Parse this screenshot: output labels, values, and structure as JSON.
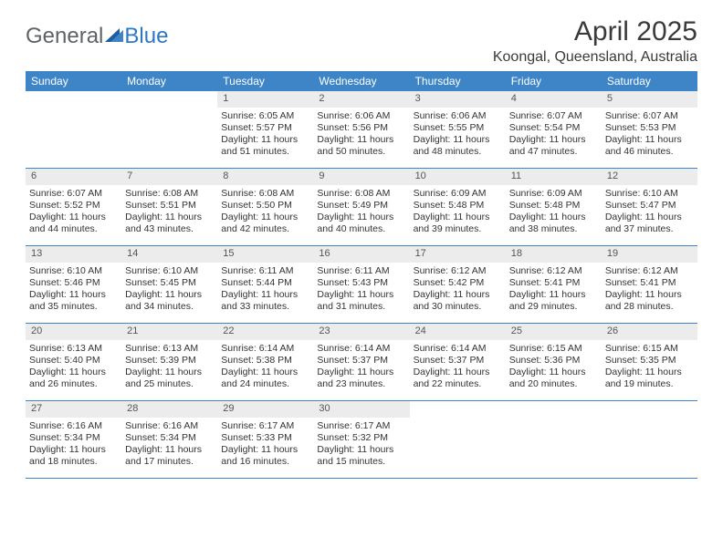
{
  "brand": {
    "part1": "General",
    "part2": "Blue"
  },
  "title": "April 2025",
  "location": "Koongal, Queensland, Australia",
  "colors": {
    "header_bar": "#3d85c6",
    "daynum_bg": "#ececec",
    "text": "#333333",
    "logo_gray": "#5f6368",
    "logo_blue": "#2b78c5",
    "row_border": "#3d85c6",
    "background": "#ffffff"
  },
  "typography": {
    "title_fontsize": 30,
    "location_fontsize": 16,
    "dow_fontsize": 12,
    "cell_fontsize": 10.5,
    "logo_fontsize": 24
  },
  "dow": [
    "Sunday",
    "Monday",
    "Tuesday",
    "Wednesday",
    "Thursday",
    "Friday",
    "Saturday"
  ],
  "weeks": [
    [
      {
        "n": "",
        "sr": "",
        "ss": "",
        "dl": ""
      },
      {
        "n": "",
        "sr": "",
        "ss": "",
        "dl": ""
      },
      {
        "n": "1",
        "sr": "Sunrise: 6:05 AM",
        "ss": "Sunset: 5:57 PM",
        "dl": "Daylight: 11 hours and 51 minutes."
      },
      {
        "n": "2",
        "sr": "Sunrise: 6:06 AM",
        "ss": "Sunset: 5:56 PM",
        "dl": "Daylight: 11 hours and 50 minutes."
      },
      {
        "n": "3",
        "sr": "Sunrise: 6:06 AM",
        "ss": "Sunset: 5:55 PM",
        "dl": "Daylight: 11 hours and 48 minutes."
      },
      {
        "n": "4",
        "sr": "Sunrise: 6:07 AM",
        "ss": "Sunset: 5:54 PM",
        "dl": "Daylight: 11 hours and 47 minutes."
      },
      {
        "n": "5",
        "sr": "Sunrise: 6:07 AM",
        "ss": "Sunset: 5:53 PM",
        "dl": "Daylight: 11 hours and 46 minutes."
      }
    ],
    [
      {
        "n": "6",
        "sr": "Sunrise: 6:07 AM",
        "ss": "Sunset: 5:52 PM",
        "dl": "Daylight: 11 hours and 44 minutes."
      },
      {
        "n": "7",
        "sr": "Sunrise: 6:08 AM",
        "ss": "Sunset: 5:51 PM",
        "dl": "Daylight: 11 hours and 43 minutes."
      },
      {
        "n": "8",
        "sr": "Sunrise: 6:08 AM",
        "ss": "Sunset: 5:50 PM",
        "dl": "Daylight: 11 hours and 42 minutes."
      },
      {
        "n": "9",
        "sr": "Sunrise: 6:08 AM",
        "ss": "Sunset: 5:49 PM",
        "dl": "Daylight: 11 hours and 40 minutes."
      },
      {
        "n": "10",
        "sr": "Sunrise: 6:09 AM",
        "ss": "Sunset: 5:48 PM",
        "dl": "Daylight: 11 hours and 39 minutes."
      },
      {
        "n": "11",
        "sr": "Sunrise: 6:09 AM",
        "ss": "Sunset: 5:48 PM",
        "dl": "Daylight: 11 hours and 38 minutes."
      },
      {
        "n": "12",
        "sr": "Sunrise: 6:10 AM",
        "ss": "Sunset: 5:47 PM",
        "dl": "Daylight: 11 hours and 37 minutes."
      }
    ],
    [
      {
        "n": "13",
        "sr": "Sunrise: 6:10 AM",
        "ss": "Sunset: 5:46 PM",
        "dl": "Daylight: 11 hours and 35 minutes."
      },
      {
        "n": "14",
        "sr": "Sunrise: 6:10 AM",
        "ss": "Sunset: 5:45 PM",
        "dl": "Daylight: 11 hours and 34 minutes."
      },
      {
        "n": "15",
        "sr": "Sunrise: 6:11 AM",
        "ss": "Sunset: 5:44 PM",
        "dl": "Daylight: 11 hours and 33 minutes."
      },
      {
        "n": "16",
        "sr": "Sunrise: 6:11 AM",
        "ss": "Sunset: 5:43 PM",
        "dl": "Daylight: 11 hours and 31 minutes."
      },
      {
        "n": "17",
        "sr": "Sunrise: 6:12 AM",
        "ss": "Sunset: 5:42 PM",
        "dl": "Daylight: 11 hours and 30 minutes."
      },
      {
        "n": "18",
        "sr": "Sunrise: 6:12 AM",
        "ss": "Sunset: 5:41 PM",
        "dl": "Daylight: 11 hours and 29 minutes."
      },
      {
        "n": "19",
        "sr": "Sunrise: 6:12 AM",
        "ss": "Sunset: 5:41 PM",
        "dl": "Daylight: 11 hours and 28 minutes."
      }
    ],
    [
      {
        "n": "20",
        "sr": "Sunrise: 6:13 AM",
        "ss": "Sunset: 5:40 PM",
        "dl": "Daylight: 11 hours and 26 minutes."
      },
      {
        "n": "21",
        "sr": "Sunrise: 6:13 AM",
        "ss": "Sunset: 5:39 PM",
        "dl": "Daylight: 11 hours and 25 minutes."
      },
      {
        "n": "22",
        "sr": "Sunrise: 6:14 AM",
        "ss": "Sunset: 5:38 PM",
        "dl": "Daylight: 11 hours and 24 minutes."
      },
      {
        "n": "23",
        "sr": "Sunrise: 6:14 AM",
        "ss": "Sunset: 5:37 PM",
        "dl": "Daylight: 11 hours and 23 minutes."
      },
      {
        "n": "24",
        "sr": "Sunrise: 6:14 AM",
        "ss": "Sunset: 5:37 PM",
        "dl": "Daylight: 11 hours and 22 minutes."
      },
      {
        "n": "25",
        "sr": "Sunrise: 6:15 AM",
        "ss": "Sunset: 5:36 PM",
        "dl": "Daylight: 11 hours and 20 minutes."
      },
      {
        "n": "26",
        "sr": "Sunrise: 6:15 AM",
        "ss": "Sunset: 5:35 PM",
        "dl": "Daylight: 11 hours and 19 minutes."
      }
    ],
    [
      {
        "n": "27",
        "sr": "Sunrise: 6:16 AM",
        "ss": "Sunset: 5:34 PM",
        "dl": "Daylight: 11 hours and 18 minutes."
      },
      {
        "n": "28",
        "sr": "Sunrise: 6:16 AM",
        "ss": "Sunset: 5:34 PM",
        "dl": "Daylight: 11 hours and 17 minutes."
      },
      {
        "n": "29",
        "sr": "Sunrise: 6:17 AM",
        "ss": "Sunset: 5:33 PM",
        "dl": "Daylight: 11 hours and 16 minutes."
      },
      {
        "n": "30",
        "sr": "Sunrise: 6:17 AM",
        "ss": "Sunset: 5:32 PM",
        "dl": "Daylight: 11 hours and 15 minutes."
      },
      {
        "n": "",
        "sr": "",
        "ss": "",
        "dl": ""
      },
      {
        "n": "",
        "sr": "",
        "ss": "",
        "dl": ""
      },
      {
        "n": "",
        "sr": "",
        "ss": "",
        "dl": ""
      }
    ]
  ]
}
